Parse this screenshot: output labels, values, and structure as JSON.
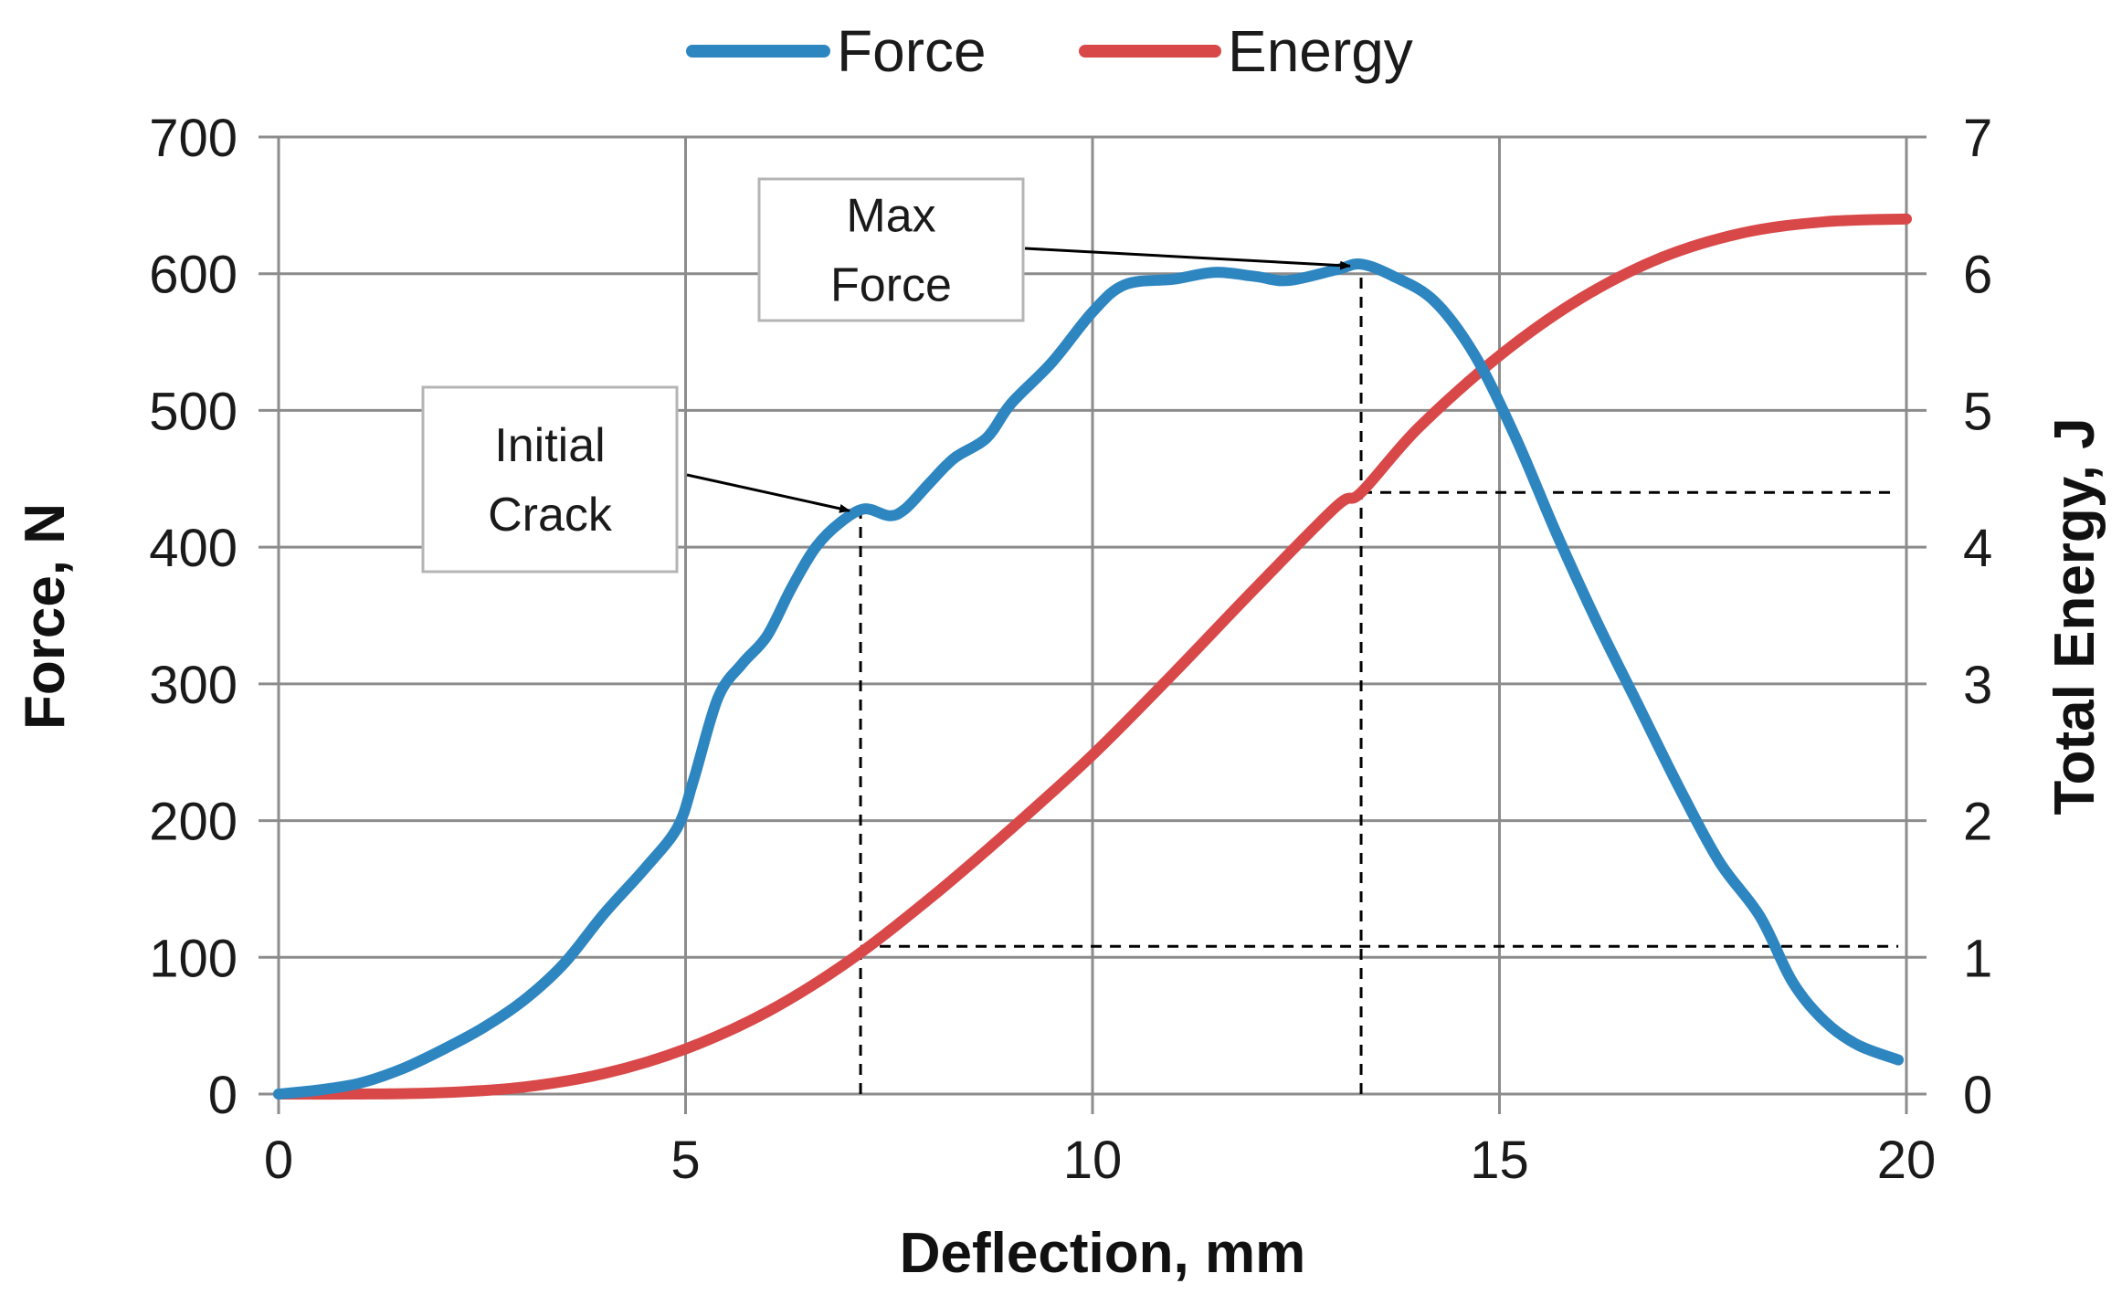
{
  "chart_data": {
    "type": "line",
    "title": "",
    "xlabel": "Deflection, mm",
    "ylabel": "Force, N",
    "y2label": "Total Energy, J",
    "xlim": [
      0,
      20
    ],
    "ylim": [
      0,
      700
    ],
    "y2lim": [
      0,
      7
    ],
    "x_ticks": [
      "0",
      "5",
      "10",
      "15",
      "20"
    ],
    "y_ticks": [
      "0",
      "100",
      "200",
      "300",
      "400",
      "500",
      "600",
      "700"
    ],
    "y2_ticks": [
      "0",
      "1",
      "2",
      "3",
      "4",
      "5",
      "6",
      "7"
    ],
    "grid": true,
    "legend_position": "top-center",
    "series": [
      {
        "name": "Force",
        "axis": "left",
        "color": "#2E86C1",
        "points": [
          [
            0,
            0
          ],
          [
            0.5,
            3
          ],
          [
            1,
            8
          ],
          [
            1.5,
            18
          ],
          [
            2,
            32
          ],
          [
            2.5,
            48
          ],
          [
            3,
            68
          ],
          [
            3.5,
            95
          ],
          [
            4,
            132
          ],
          [
            4.5,
            165
          ],
          [
            4.9,
            195
          ],
          [
            5.1,
            230
          ],
          [
            5.4,
            290
          ],
          [
            5.7,
            315
          ],
          [
            6,
            335
          ],
          [
            6.3,
            370
          ],
          [
            6.6,
            400
          ],
          [
            6.9,
            418
          ],
          [
            7.2,
            428
          ],
          [
            7.5,
            423
          ],
          [
            7.7,
            428
          ],
          [
            8,
            447
          ],
          [
            8.3,
            465
          ],
          [
            8.7,
            480
          ],
          [
            9,
            505
          ],
          [
            9.5,
            535
          ],
          [
            10,
            572
          ],
          [
            10.4,
            592
          ],
          [
            11,
            596
          ],
          [
            11.5,
            601
          ],
          [
            12,
            598
          ],
          [
            12.4,
            595
          ],
          [
            13,
            603
          ],
          [
            13.3,
            607
          ],
          [
            13.7,
            598
          ],
          [
            14.2,
            580
          ],
          [
            14.7,
            540
          ],
          [
            15.2,
            480
          ],
          [
            15.7,
            410
          ],
          [
            16.2,
            345
          ],
          [
            16.7,
            285
          ],
          [
            17.2,
            225
          ],
          [
            17.7,
            170
          ],
          [
            18.2,
            130
          ],
          [
            18.6,
            82
          ],
          [
            19,
            53
          ],
          [
            19.4,
            36
          ],
          [
            19.9,
            25
          ]
        ]
      },
      {
        "name": "Energy",
        "axis": "right",
        "color": "#D94848",
        "points": [
          [
            0,
            0
          ],
          [
            1,
            0
          ],
          [
            2,
            0.01
          ],
          [
            3,
            0.05
          ],
          [
            4,
            0.15
          ],
          [
            5,
            0.33
          ],
          [
            6,
            0.6
          ],
          [
            7,
            0.97
          ],
          [
            8,
            1.43
          ],
          [
            9,
            1.94
          ],
          [
            10,
            2.48
          ],
          [
            11,
            3.08
          ],
          [
            12,
            3.7
          ],
          [
            13,
            4.3
          ],
          [
            13.3,
            4.4
          ],
          [
            14,
            4.87
          ],
          [
            15,
            5.4
          ],
          [
            16,
            5.82
          ],
          [
            17,
            6.12
          ],
          [
            18,
            6.3
          ],
          [
            19,
            6.38
          ],
          [
            20,
            6.4
          ]
        ]
      }
    ],
    "annotations": [
      {
        "id": "initial-crack",
        "lines": [
          "Initial",
          "Crack"
        ],
        "point": [
          7.15,
          428
        ],
        "box_anchor": [
          5,
          445
        ]
      },
      {
        "id": "max-force",
        "lines": [
          "Max",
          "Force"
        ],
        "point": [
          13.3,
          607
        ],
        "box_anchor": [
          9,
          615
        ]
      }
    ],
    "reference_lines": [
      {
        "type": "vertical",
        "x": 7.15,
        "from": 0,
        "to": 428
      },
      {
        "type": "horizontal",
        "y2": 1.08,
        "from_x": 7.15,
        "to_x": 19.9
      },
      {
        "type": "vertical",
        "x": 13.3,
        "from": 0,
        "to": 607
      },
      {
        "type": "horizontal",
        "y2": 4.4,
        "from_x": 13.3,
        "to_x": 19.9
      }
    ]
  }
}
